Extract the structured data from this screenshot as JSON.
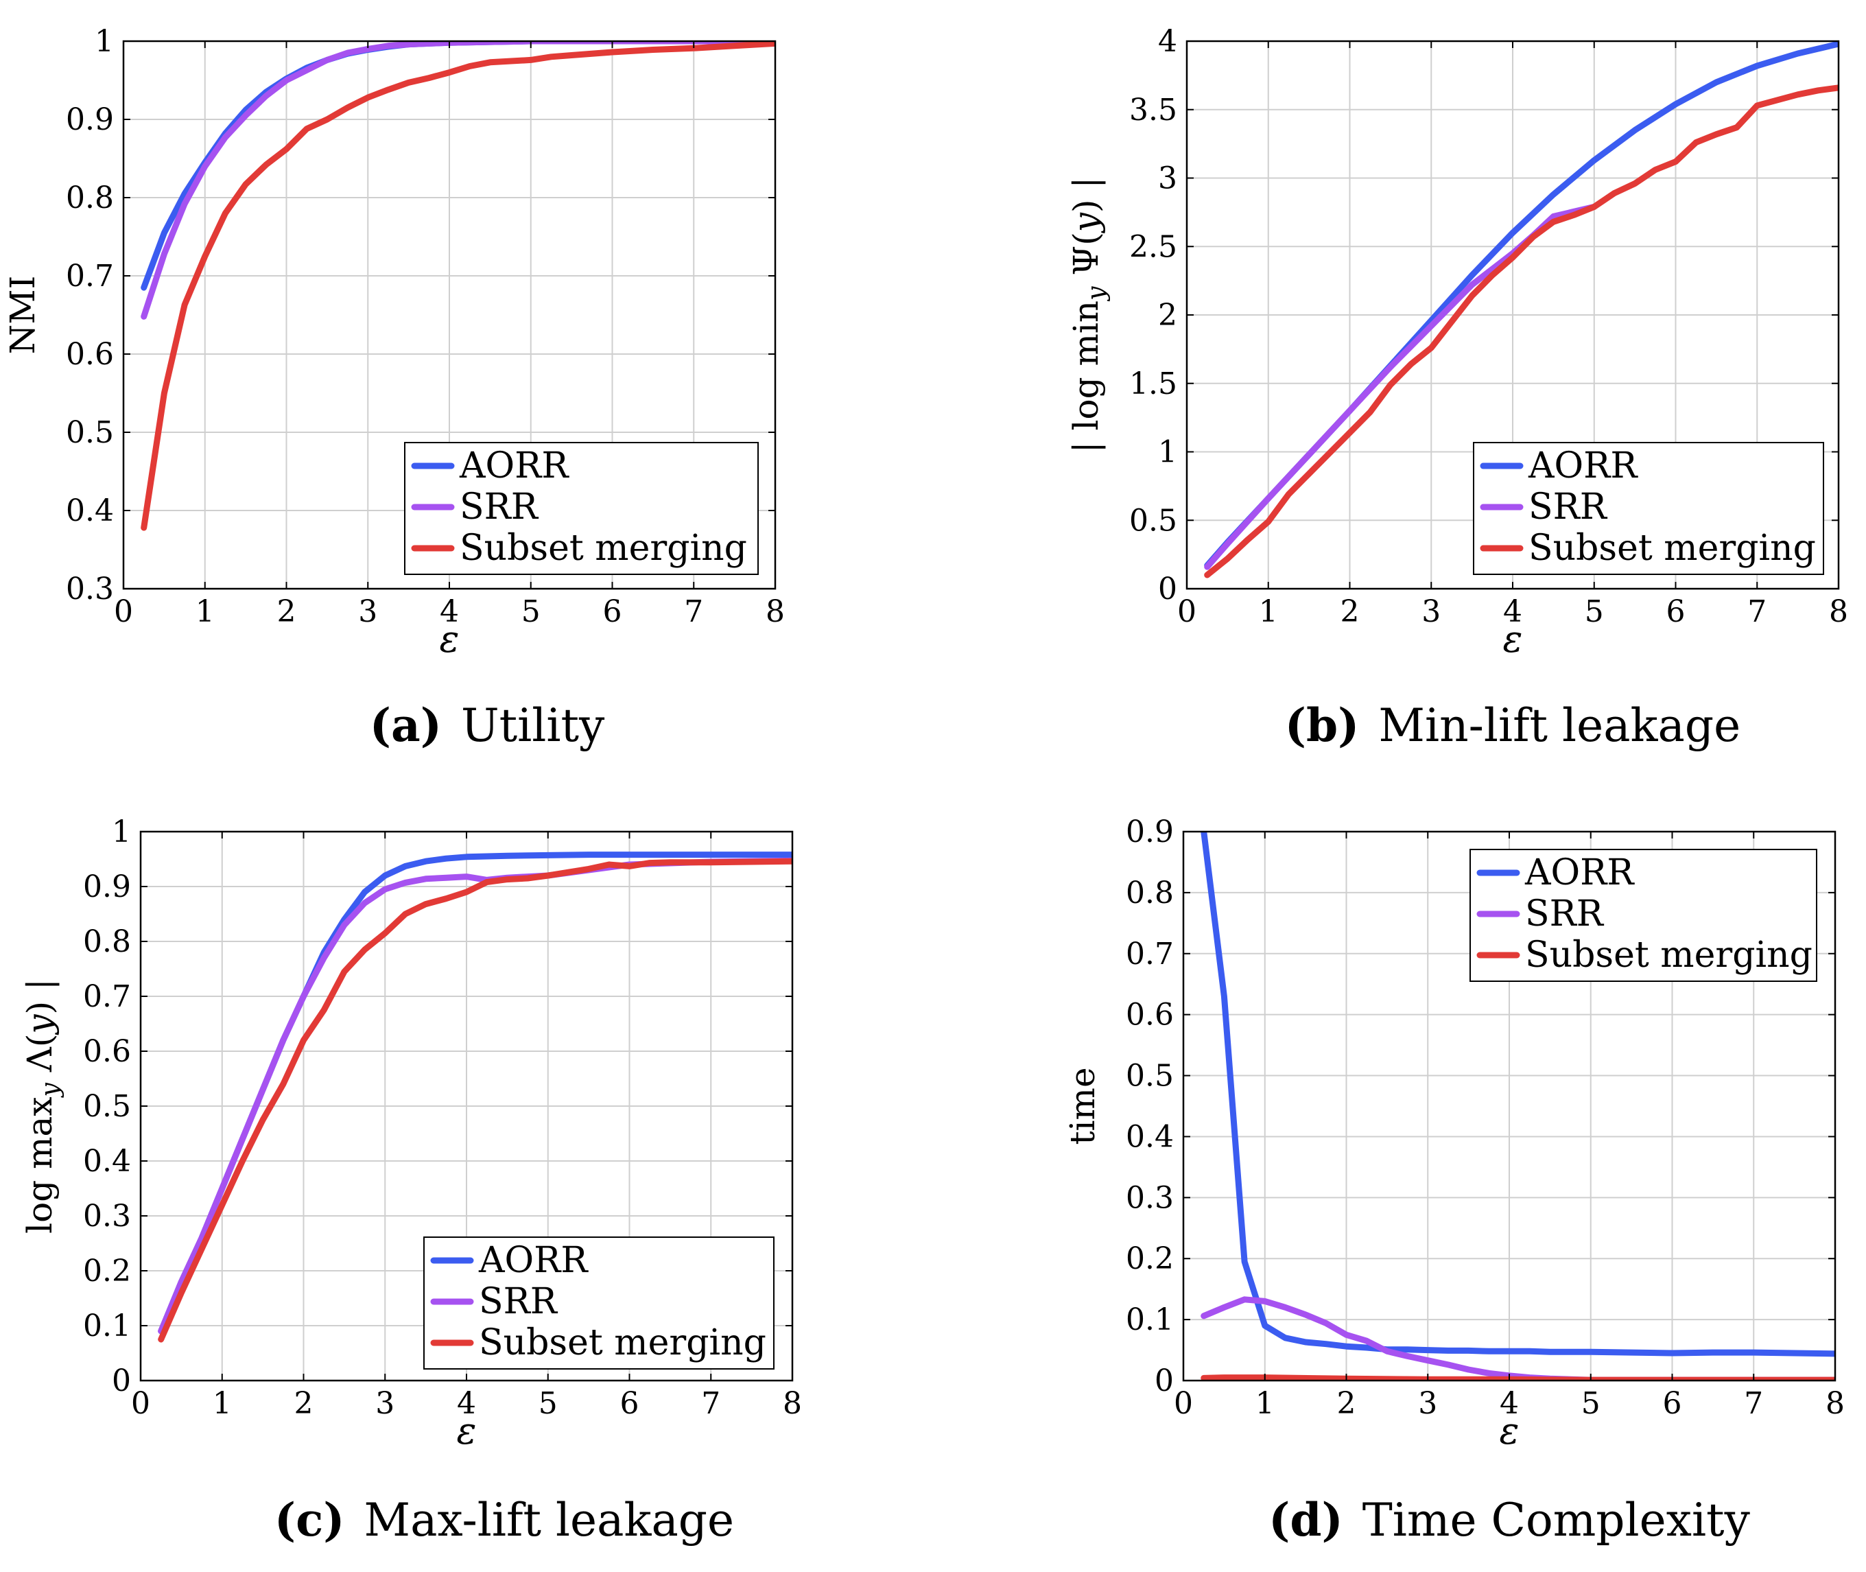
{
  "colors": {
    "AORR": "#3b5cf0",
    "SRR": "#a652f0",
    "Subset merging": "#e23a36"
  },
  "chart_data": [
    {
      "type": "line",
      "caption_letter": "(a)",
      "caption_text": "Utility",
      "xlabel": "ε",
      "ylabel": "NMI",
      "xlim": [
        0,
        8
      ],
      "ylim": [
        0.3,
        1
      ],
      "xticks": [
        0,
        1,
        2,
        3,
        4,
        5,
        6,
        7,
        8
      ],
      "yticks": [
        0.3,
        0.4,
        0.5,
        0.6,
        0.7,
        0.8,
        0.9,
        1
      ],
      "ytick_labels": [
        "0.3",
        "0.4",
        "0.5",
        "0.6",
        "0.7",
        "0.8",
        "0.9",
        "1"
      ],
      "grid": true,
      "legend_position": "bottom-right",
      "series": [
        {
          "name": "AORR",
          "x": [
            0.25,
            0.5,
            0.75,
            1,
            1.25,
            1.5,
            1.75,
            2,
            2.25,
            2.5,
            2.75,
            3,
            3.25,
            3.5,
            3.75,
            4,
            4.5,
            5,
            6,
            7,
            8
          ],
          "y": [
            0.685,
            0.755,
            0.805,
            0.845,
            0.882,
            0.912,
            0.935,
            0.952,
            0.966,
            0.976,
            0.984,
            0.989,
            0.993,
            0.996,
            0.997,
            0.998,
            0.999,
            1.0,
            1.0,
            1.0,
            1.0
          ]
        },
        {
          "name": "SRR",
          "x": [
            0.25,
            0.5,
            0.75,
            1,
            1.25,
            1.5,
            1.75,
            2,
            2.25,
            2.5,
            2.75,
            3,
            3.25,
            3.5,
            3.75,
            4,
            4.5,
            5,
            6,
            7,
            8
          ],
          "y": [
            0.648,
            0.728,
            0.792,
            0.84,
            0.877,
            0.905,
            0.93,
            0.95,
            0.963,
            0.976,
            0.985,
            0.99,
            0.994,
            0.996,
            0.997,
            0.998,
            0.999,
            1.0,
            1.0,
            1.0,
            1.0
          ]
        },
        {
          "name": "Subset merging",
          "x": [
            0.25,
            0.5,
            0.75,
            1,
            1.25,
            1.5,
            1.75,
            2,
            2.25,
            2.5,
            2.75,
            3,
            3.25,
            3.5,
            3.75,
            4,
            4.25,
            4.5,
            5,
            5.25,
            5.5,
            6,
            6.5,
            7,
            7.5,
            8
          ],
          "y": [
            0.378,
            0.55,
            0.663,
            0.725,
            0.78,
            0.817,
            0.842,
            0.862,
            0.888,
            0.9,
            0.915,
            0.928,
            0.938,
            0.947,
            0.953,
            0.96,
            0.968,
            0.973,
            0.976,
            0.98,
            0.982,
            0.986,
            0.989,
            0.991,
            0.994,
            0.997
          ]
        }
      ]
    },
    {
      "type": "line",
      "caption_letter": "(b)",
      "caption_text": "Min-lift leakage",
      "xlabel": "ε",
      "ylabel": "| log min_y Ψ(y) |",
      "xlim": [
        0,
        8
      ],
      "ylim": [
        0,
        4
      ],
      "xticks": [
        0,
        1,
        2,
        3,
        4,
        5,
        6,
        7,
        8
      ],
      "yticks": [
        0,
        0.5,
        1,
        1.5,
        2,
        2.5,
        3,
        3.5,
        4
      ],
      "ytick_labels": [
        "0",
        "0.5",
        "1",
        "1.5",
        "2",
        "2.5",
        "3",
        "3.5",
        "4"
      ],
      "grid": true,
      "legend_position": "bottom-right",
      "series": [
        {
          "name": "AORR",
          "x": [
            0.25,
            0.5,
            1,
            1.5,
            2,
            2.5,
            3,
            3.5,
            4,
            4.5,
            5,
            5.5,
            6,
            6.5,
            7,
            7.5,
            8
          ],
          "y": [
            0.17,
            0.34,
            0.66,
            0.98,
            1.3,
            1.63,
            1.96,
            2.29,
            2.6,
            2.88,
            3.13,
            3.35,
            3.54,
            3.7,
            3.82,
            3.91,
            3.98
          ]
        },
        {
          "name": "SRR",
          "x": [
            0.25,
            0.5,
            1,
            1.5,
            2,
            2.5,
            3,
            3.5,
            4,
            4.25,
            4.5,
            5
          ],
          "y": [
            0.16,
            0.33,
            0.66,
            0.98,
            1.3,
            1.62,
            1.92,
            2.22,
            2.45,
            2.58,
            2.72,
            2.79
          ]
        },
        {
          "name": "Subset merging",
          "x": [
            0.25,
            0.5,
            0.75,
            1,
            1.25,
            1.5,
            1.75,
            2,
            2.25,
            2.5,
            2.75,
            3,
            3.25,
            3.5,
            3.75,
            4,
            4.25,
            4.5,
            4.75,
            5,
            5.25,
            5.5,
            5.75,
            6,
            6.25,
            6.5,
            6.75,
            7,
            7.25,
            7.5,
            7.75,
            8
          ],
          "y": [
            0.1,
            0.22,
            0.36,
            0.49,
            0.69,
            0.84,
            0.99,
            1.14,
            1.29,
            1.49,
            1.64,
            1.76,
            1.95,
            2.14,
            2.29,
            2.42,
            2.57,
            2.68,
            2.73,
            2.79,
            2.89,
            2.96,
            3.06,
            3.12,
            3.26,
            3.32,
            3.37,
            3.53,
            3.57,
            3.61,
            3.64,
            3.66
          ]
        }
      ]
    },
    {
      "type": "line",
      "caption_letter": "(c)",
      "caption_text": "Max-lift leakage",
      "xlabel": "ε",
      "ylabel": "log max_y Λ(y) |",
      "xlim": [
        0,
        8
      ],
      "ylim": [
        0,
        1
      ],
      "xticks": [
        0,
        1,
        2,
        3,
        4,
        5,
        6,
        7,
        8
      ],
      "yticks": [
        0,
        0.1,
        0.2,
        0.3,
        0.4,
        0.5,
        0.6,
        0.7,
        0.8,
        0.9,
        1
      ],
      "ytick_labels": [
        "0",
        "0.1",
        "0.2",
        "0.3",
        "0.4",
        "0.5",
        "0.6",
        "0.7",
        "0.8",
        "0.9",
        "1"
      ],
      "grid": true,
      "legend_position": "bottom-right",
      "series": [
        {
          "name": "AORR",
          "x": [
            0.25,
            0.5,
            0.75,
            1,
            1.25,
            1.5,
            1.75,
            2,
            2.25,
            2.5,
            2.75,
            3,
            3.25,
            3.5,
            3.75,
            4,
            4.5,
            5,
            5.5,
            6,
            7,
            8
          ],
          "y": [
            0.09,
            0.18,
            0.26,
            0.35,
            0.44,
            0.53,
            0.62,
            0.7,
            0.78,
            0.84,
            0.89,
            0.92,
            0.937,
            0.946,
            0.951,
            0.954,
            0.956,
            0.957,
            0.958,
            0.958,
            0.958,
            0.958
          ]
        },
        {
          "name": "SRR",
          "x": [
            0.25,
            0.5,
            0.75,
            1,
            1.25,
            1.5,
            1.75,
            2,
            2.25,
            2.5,
            2.75,
            3,
            3.25,
            3.5,
            3.75,
            4,
            4.25,
            4.5,
            5,
            6,
            7,
            8
          ],
          "y": [
            0.09,
            0.18,
            0.26,
            0.35,
            0.44,
            0.53,
            0.62,
            0.7,
            0.77,
            0.83,
            0.87,
            0.895,
            0.907,
            0.914,
            0.916,
            0.918,
            0.912,
            0.916,
            0.92,
            0.94,
            0.945,
            0.947
          ]
        },
        {
          "name": "Subset merging",
          "x": [
            0.25,
            0.5,
            0.75,
            1,
            1.25,
            1.5,
            1.75,
            2,
            2.25,
            2.5,
            2.75,
            3,
            3.25,
            3.5,
            3.75,
            4,
            4.25,
            4.5,
            4.75,
            5,
            5.25,
            5.5,
            5.75,
            6,
            6.25,
            6.5,
            7,
            7.5,
            8
          ],
          "y": [
            0.075,
            0.16,
            0.24,
            0.32,
            0.4,
            0.475,
            0.54,
            0.62,
            0.675,
            0.745,
            0.785,
            0.815,
            0.85,
            0.868,
            0.878,
            0.89,
            0.908,
            0.913,
            0.915,
            0.92,
            0.926,
            0.932,
            0.94,
            0.937,
            0.943,
            0.944,
            0.944,
            0.945,
            0.946
          ]
        }
      ]
    },
    {
      "type": "line",
      "caption_letter": "(d)",
      "caption_text": "Time Complexity",
      "xlabel": "ε",
      "ylabel": "time",
      "xlim": [
        0,
        8
      ],
      "ylim": [
        0,
        0.9
      ],
      "xticks": [
        0,
        1,
        2,
        3,
        4,
        5,
        6,
        7,
        8
      ],
      "yticks": [
        0,
        0.1,
        0.2,
        0.3,
        0.4,
        0.5,
        0.6,
        0.7,
        0.8,
        0.9
      ],
      "ytick_labels": [
        "0",
        "0.1",
        "0.2",
        "0.3",
        "0.4",
        "0.5",
        "0.6",
        "0.7",
        "0.8",
        "0.9"
      ],
      "grid": true,
      "legend_position": "top-right",
      "series": [
        {
          "name": "AORR",
          "x": [
            0.25,
            0.5,
            0.75,
            1,
            1.25,
            1.5,
            1.75,
            2,
            2.25,
            2.5,
            2.75,
            3,
            3.25,
            3.5,
            3.75,
            4,
            4.25,
            4.5,
            5,
            5.5,
            6,
            6.5,
            7,
            7.5,
            8
          ],
          "y": [
            0.9,
            0.63,
            0.195,
            0.09,
            0.07,
            0.063,
            0.06,
            0.056,
            0.054,
            0.051,
            0.051,
            0.05,
            0.049,
            0.049,
            0.048,
            0.048,
            0.048,
            0.047,
            0.047,
            0.046,
            0.045,
            0.046,
            0.046,
            0.045,
            0.044
          ]
        },
        {
          "name": "SRR",
          "x": [
            0.25,
            0.5,
            0.75,
            1,
            1.25,
            1.5,
            1.75,
            2,
            2.25,
            2.5,
            2.75,
            3,
            3.25,
            3.5,
            3.75,
            4,
            4.25,
            4.5,
            5,
            6,
            7,
            8
          ],
          "y": [
            0.106,
            0.12,
            0.133,
            0.13,
            0.12,
            0.108,
            0.094,
            0.075,
            0.065,
            0.048,
            0.04,
            0.033,
            0.026,
            0.018,
            0.012,
            0.008,
            0.005,
            0.003,
            0.001,
            0.001,
            0.001,
            0.001
          ]
        },
        {
          "name": "Subset merging",
          "x": [
            0.25,
            0.5,
            1,
            2,
            3,
            4,
            5,
            6,
            7,
            8
          ],
          "y": [
            0.004,
            0.005,
            0.005,
            0.003,
            0.002,
            0.002,
            0.001,
            0.001,
            0.001,
            0.001
          ]
        }
      ]
    }
  ]
}
